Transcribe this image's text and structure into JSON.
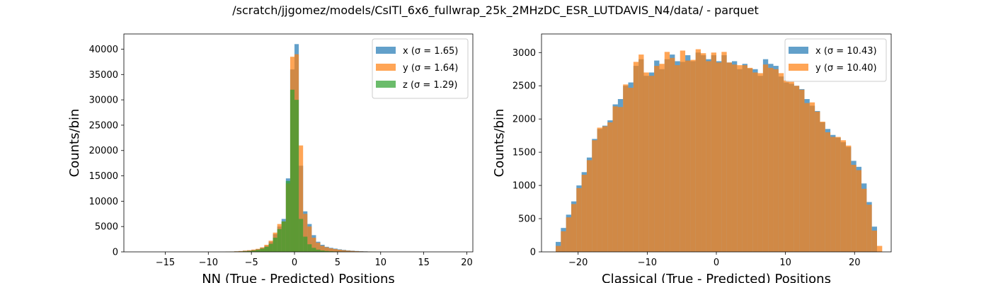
{
  "figure": {
    "title": "/scratch/jjgomez/models/CsITl_6x6_fullwrap_25k_2MHzDC_ESR_LUTDAVIS_N4/data/ - parquet"
  },
  "chart_data": [
    {
      "type": "bar",
      "subtype": "histogram",
      "xlabel": "NN (True - Predicted) Positions",
      "ylabel": "Counts/bin",
      "xlim": [
        -19.8,
        20.7
      ],
      "ylim": [
        0,
        43000
      ],
      "xticks": [
        -15,
        -10,
        -5,
        0,
        5,
        10,
        15,
        20
      ],
      "xtick_labels": [
        "−15",
        "−10",
        "−5",
        "0",
        "5",
        "10",
        "15",
        "20"
      ],
      "yticks": [
        0,
        5000,
        10000,
        15000,
        20000,
        25000,
        30000,
        35000,
        40000
      ],
      "bin_width": 0.5,
      "legend_position": "upper right",
      "grid": false,
      "series": [
        {
          "name": "x (σ = 1.65)",
          "color": "#1f77b4",
          "x": [
            -8,
            -7.5,
            -7,
            -6.5,
            -6,
            -5.5,
            -5,
            -4.5,
            -4,
            -3.5,
            -3,
            -2.5,
            -2,
            -1.5,
            -1,
            -0.5,
            0,
            0.5,
            1,
            1.5,
            2,
            2.5,
            3,
            3.5,
            4,
            4.5,
            5,
            5.5,
            6,
            6.5,
            7,
            7.5,
            8,
            8.5,
            9,
            9.5
          ],
          "values": [
            30,
            60,
            100,
            150,
            230,
            300,
            400,
            550,
            800,
            1200,
            2000,
            3500,
            5000,
            6500,
            14500,
            36000,
            41000,
            17000,
            8000,
            5500,
            3300,
            2000,
            1400,
            1000,
            800,
            650,
            500,
            400,
            300,
            230,
            170,
            130,
            100,
            70,
            50,
            30
          ]
        },
        {
          "name": "y (σ = 1.64)",
          "color": "#ff7f0e",
          "x": [
            -8,
            -7.5,
            -7,
            -6.5,
            -6,
            -5.5,
            -5,
            -4.5,
            -4,
            -3.5,
            -3,
            -2.5,
            -2,
            -1.5,
            -1,
            -0.5,
            0,
            0.5,
            1,
            1.5,
            2,
            2.5,
            3,
            3.5,
            4,
            4.5,
            5,
            5.5,
            6,
            6.5,
            7,
            7.5,
            8,
            8.5,
            9,
            9.5
          ],
          "values": [
            40,
            70,
            110,
            160,
            240,
            320,
            450,
            600,
            900,
            1400,
            2200,
            3800,
            5500,
            6000,
            13500,
            38500,
            39000,
            21000,
            7500,
            5000,
            2800,
            1800,
            1200,
            900,
            700,
            550,
            420,
            330,
            250,
            190,
            140,
            100,
            80,
            60,
            40,
            30
          ]
        },
        {
          "name": "z (σ = 1.29)",
          "color": "#2ca02c",
          "x": [
            -8,
            -7.5,
            -7,
            -6.5,
            -6,
            -5.5,
            -5,
            -4.5,
            -4,
            -3.5,
            -3,
            -2.5,
            -2,
            -1.5,
            -1,
            -0.5,
            0,
            0.5,
            1,
            1.5,
            2,
            2.5,
            3,
            3.5,
            4,
            4.5,
            5,
            5.5,
            6,
            6.5,
            7,
            7.5,
            8,
            8.5,
            9,
            9.5
          ],
          "values": [
            10,
            20,
            40,
            70,
            110,
            160,
            250,
            400,
            650,
            1000,
            1600,
            2800,
            4500,
            6000,
            14000,
            32000,
            30000,
            6500,
            3000,
            1500,
            800,
            450,
            280,
            180,
            120,
            80,
            60,
            40,
            30,
            20,
            15,
            10,
            8,
            6,
            4,
            2
          ]
        }
      ]
    },
    {
      "type": "bar",
      "subtype": "histogram",
      "xlabel": "Classical (True - Predicted) Positions",
      "ylabel": "Counts/bin",
      "xlim": [
        -25.3,
        25.3
      ],
      "ylim": [
        0,
        3280
      ],
      "xticks": [
        -20,
        -10,
        0,
        10,
        20
      ],
      "xtick_labels": [
        "−20",
        "−10",
        "0",
        "10",
        "20"
      ],
      "yticks": [
        0,
        500,
        1000,
        1500,
        2000,
        2500,
        3000
      ],
      "bin_width": 0.75,
      "legend_position": "upper right",
      "grid": false,
      "series": [
        {
          "name": "x (σ = 10.43)",
          "color": "#1f77b4",
          "x": [
            -23.25,
            -22.5,
            -21.75,
            -21,
            -20.25,
            -19.5,
            -18.75,
            -18,
            -17.25,
            -16.5,
            -15.75,
            -15,
            -14.25,
            -13.5,
            -12.75,
            -12,
            -11.25,
            -10.5,
            -9.75,
            -9,
            -8.25,
            -7.5,
            -6.75,
            -6,
            -5.25,
            -4.5,
            -3.75,
            -3,
            -2.25,
            -1.5,
            -0.75,
            0,
            0.75,
            1.5,
            2.25,
            3,
            3.75,
            4.5,
            5.25,
            6,
            6.75,
            7.5,
            8.25,
            9,
            9.75,
            10.5,
            11.25,
            12,
            12.75,
            13.5,
            14.25,
            15,
            15.75,
            16.5,
            17.25,
            18,
            18.75,
            19.5,
            20.25,
            21,
            21.75,
            22.5
          ],
          "values": [
            150,
            360,
            560,
            760,
            1000,
            1200,
            1420,
            1700,
            1850,
            1900,
            1980,
            2220,
            2300,
            2500,
            2550,
            2800,
            2900,
            2650,
            2700,
            2880,
            2750,
            2900,
            2970,
            2870,
            2860,
            2960,
            2870,
            3000,
            2960,
            2900,
            2960,
            2870,
            2960,
            2850,
            2870,
            2750,
            2830,
            2760,
            2750,
            2650,
            2900,
            2830,
            2800,
            2640,
            2550,
            2530,
            2500,
            2450,
            2300,
            2200,
            2120,
            1950,
            1850,
            1760,
            1720,
            1650,
            1580,
            1370,
            1280,
            1030,
            750,
            380
          ]
        },
        {
          "name": "y (σ = 10.40)",
          "color": "#ff7f0e",
          "x": [
            -23.25,
            -22.5,
            -21.75,
            -21,
            -20.25,
            -19.5,
            -18.75,
            -18,
            -17.25,
            -16.5,
            -15.75,
            -15,
            -14.25,
            -13.5,
            -12.75,
            -12,
            -11.25,
            -10.5,
            -9.75,
            -9,
            -8.25,
            -7.5,
            -6.75,
            -6,
            -5.25,
            -4.5,
            -3.75,
            -3,
            -2.25,
            -1.5,
            -0.75,
            0,
            0.75,
            1.5,
            2.25,
            3,
            3.75,
            4.5,
            5.25,
            6,
            6.75,
            7.5,
            8.25,
            9,
            9.75,
            10.5,
            11.25,
            12,
            12.75,
            13.5,
            14.25,
            15,
            15.75,
            16.5,
            17.25,
            18,
            18.75,
            19.5,
            20.25,
            21,
            21.75,
            22.5,
            23.25
          ],
          "values": [
            90,
            310,
            520,
            720,
            960,
            1160,
            1380,
            1680,
            1870,
            1890,
            1950,
            2190,
            2180,
            2520,
            2470,
            2860,
            2970,
            2700,
            2650,
            2800,
            2830,
            3010,
            2920,
            2810,
            3030,
            2880,
            2890,
            3050,
            2990,
            2870,
            3000,
            2850,
            3010,
            2850,
            2820,
            2810,
            2810,
            2770,
            2700,
            2690,
            2820,
            2770,
            2750,
            2690,
            2580,
            2560,
            2500,
            2440,
            2240,
            2250,
            2110,
            1960,
            1800,
            1730,
            1730,
            1680,
            1600,
            1310,
            1230,
            950,
            710,
            320,
            90
          ]
        }
      ]
    }
  ]
}
